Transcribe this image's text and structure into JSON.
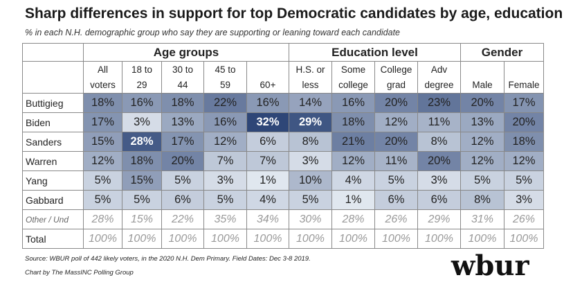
{
  "title": "Sharp differences in support for top Democratic candidates by age, education",
  "subtitle": "% in each N.H. demographic group who say they are supporting or leaning toward each candidate",
  "source": "Source: WBUR poll of 442 likely voters, in the 2020 N.H. Dem Primary. Field Dates: Dec 3-8 2019.",
  "credit": "Chart by The MassINC Polling Group",
  "logo": "wbur",
  "colors": {
    "dark": "#2e4677",
    "light": "#e6ecf3",
    "border": "#888888"
  },
  "chart_data": {
    "type": "table",
    "title": "Sharp differences in support for top Democratic candidates by age, education",
    "groups": [
      {
        "label": "",
        "span": 1
      },
      {
        "label": "Age groups",
        "span": 5
      },
      {
        "label": "Education level",
        "span": 4
      },
      {
        "label": "Gender",
        "span": 2
      }
    ],
    "columns": [
      {
        "line1": "All",
        "line2": "voters"
      },
      {
        "line1": "18 to",
        "line2": "29"
      },
      {
        "line1": "30 to",
        "line2": "44"
      },
      {
        "line1": "45 to",
        "line2": "59"
      },
      {
        "line1": "",
        "line2": "60+"
      },
      {
        "line1": "H.S. or",
        "line2": "less"
      },
      {
        "line1": "Some",
        "line2": "college"
      },
      {
        "line1": "College",
        "line2": "grad"
      },
      {
        "line1": "Adv",
        "line2": "degree"
      },
      {
        "line1": "",
        "line2": "Male"
      },
      {
        "line1": "",
        "line2": "Female"
      }
    ],
    "rows": [
      {
        "candidate": "Buttigieg",
        "values": [
          18,
          16,
          18,
          22,
          16,
          14,
          16,
          20,
          23,
          20,
          17
        ],
        "labels": [
          "18%",
          "16%",
          "18%",
          "22%",
          "16%",
          "14%",
          "16%",
          "20%",
          "23%",
          "20%",
          "17%"
        ]
      },
      {
        "candidate": "Biden",
        "values": [
          17,
          3,
          13,
          16,
          32,
          29,
          18,
          12,
          11,
          13,
          20
        ],
        "labels": [
          "17%",
          "3%",
          "13%",
          "16%",
          "32%",
          "29%",
          "18%",
          "12%",
          "11%",
          "13%",
          "20%"
        ]
      },
      {
        "candidate": "Sanders",
        "values": [
          15,
          28,
          17,
          12,
          6,
          8,
          21,
          20,
          8,
          12,
          18
        ],
        "labels": [
          "15%",
          "28%",
          "17%",
          "12%",
          "6%",
          "8%",
          "21%",
          "20%",
          "8%",
          "12%",
          "18%"
        ]
      },
      {
        "candidate": "Warren",
        "values": [
          12,
          18,
          20,
          7,
          7,
          3,
          12,
          11,
          20,
          12,
          12
        ],
        "labels": [
          "12%",
          "18%",
          "20%",
          "7%",
          "7%",
          "3%",
          "12%",
          "11%",
          "20%",
          "12%",
          "12%"
        ]
      },
      {
        "candidate": "Yang",
        "values": [
          5,
          15,
          5,
          3,
          1,
          10,
          4,
          5,
          3,
          5,
          5
        ],
        "labels": [
          "5%",
          "15%",
          "5%",
          "3%",
          "1%",
          "10%",
          "4%",
          "5%",
          "3%",
          "5%",
          "5%"
        ]
      },
      {
        "candidate": "Gabbard",
        "values": [
          5,
          5,
          6,
          5,
          4,
          5,
          1,
          6,
          6,
          8,
          3
        ],
        "labels": [
          "5%",
          "5%",
          "6%",
          "5%",
          "4%",
          "5%",
          "1%",
          "6%",
          "6%",
          "8%",
          "3%"
        ]
      }
    ],
    "other_row": {
      "candidate": "Other / Und",
      "values": [
        28,
        15,
        22,
        35,
        34,
        30,
        28,
        26,
        29,
        31,
        26
      ],
      "labels": [
        "28%",
        "15%",
        "22%",
        "35%",
        "34%",
        "30%",
        "28%",
        "26%",
        "29%",
        "31%",
        "26%"
      ]
    },
    "total_row": {
      "candidate": "Total",
      "values": [
        100,
        100,
        100,
        100,
        100,
        100,
        100,
        100,
        100,
        100,
        100
      ],
      "labels": [
        "100%",
        "100%",
        "100%",
        "100%",
        "100%",
        "100%",
        "100%",
        "100%",
        "100%",
        "100%",
        "100%"
      ]
    }
  }
}
